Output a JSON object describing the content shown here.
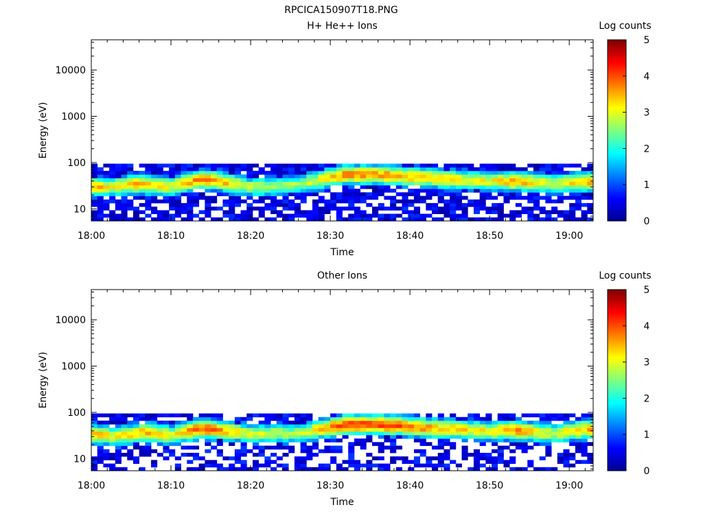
{
  "figure_title": "RPCICA150907T18.PNG",
  "colors": {
    "scale": [
      "#00008f",
      "#0000ff",
      "#007fff",
      "#00ffff",
      "#7fff7f",
      "#ffff00",
      "#ff7f00",
      "#ff0000",
      "#7f0000"
    ],
    "axis": "#000000",
    "background": "#ffffff"
  },
  "chart_data": [
    {
      "type": "heatmap",
      "title": "H+ He++ Ions",
      "xlabel": "Time",
      "ylabel": "Energy (eV)",
      "colorbar_label": "Log counts",
      "x_ticks": [
        "18:00",
        "18:10",
        "18:20",
        "18:30",
        "18:40",
        "18:50",
        "19:00"
      ],
      "x_range_minutes": [
        0,
        63
      ],
      "y_scale": "log",
      "y_range": [
        5.5,
        45000
      ],
      "y_ticks": [
        10,
        100,
        1000,
        10000
      ],
      "y_tick_labels": [
        "10",
        "100",
        "1000",
        "10000"
      ],
      "colorbar_range": [
        0,
        5
      ],
      "colorbar_ticks": [
        "0",
        "1",
        "2",
        "3",
        "4",
        "5"
      ],
      "energy_band": [
        5.5,
        95
      ],
      "peak_energy": [
        {
          "t": 0,
          "e": 30
        },
        {
          "t": 2,
          "e": 30
        },
        {
          "t": 6,
          "e": 35
        },
        {
          "t": 10,
          "e": 30
        },
        {
          "t": 14,
          "e": 45
        },
        {
          "t": 20,
          "e": 30
        },
        {
          "t": 26,
          "e": 33
        },
        {
          "t": 32,
          "e": 55
        },
        {
          "t": 36,
          "e": 55
        },
        {
          "t": 40,
          "e": 50
        },
        {
          "t": 44,
          "e": 45
        },
        {
          "t": 50,
          "e": 40
        },
        {
          "t": 53,
          "e": 40
        },
        {
          "t": 58,
          "e": 35
        },
        {
          "t": 63,
          "e": 40
        }
      ],
      "peak_intensity": [
        {
          "t": 0,
          "v": 3.6
        },
        {
          "t": 3,
          "v": 3.0
        },
        {
          "t": 6,
          "v": 3.5
        },
        {
          "t": 10,
          "v": 3.0
        },
        {
          "t": 14,
          "v": 3.9
        },
        {
          "t": 20,
          "v": 2.8
        },
        {
          "t": 26,
          "v": 2.6
        },
        {
          "t": 32,
          "v": 3.7
        },
        {
          "t": 36,
          "v": 3.6
        },
        {
          "t": 40,
          "v": 3.4
        },
        {
          "t": 44,
          "v": 3.3
        },
        {
          "t": 50,
          "v": 3.0
        },
        {
          "t": 53,
          "v": 3.6
        },
        {
          "t": 58,
          "v": 2.9
        },
        {
          "t": 63,
          "v": 3.5
        }
      ]
    },
    {
      "type": "heatmap",
      "title": "Other Ions",
      "xlabel": "Time",
      "ylabel": "Energy (eV)",
      "colorbar_label": "Log counts",
      "x_ticks": [
        "18:00",
        "18:10",
        "18:20",
        "18:30",
        "18:40",
        "18:50",
        "19:00"
      ],
      "x_range_minutes": [
        0,
        63
      ],
      "y_scale": "log",
      "y_range": [
        5.5,
        45000
      ],
      "y_ticks": [
        10,
        100,
        1000,
        10000
      ],
      "y_tick_labels": [
        "10",
        "100",
        "1000",
        "10000"
      ],
      "colorbar_range": [
        0,
        5
      ],
      "colorbar_ticks": [
        "0",
        "1",
        "2",
        "3",
        "4",
        "5"
      ],
      "energy_band": [
        5.5,
        95
      ],
      "peak_energy": [
        {
          "t": 0,
          "e": 35
        },
        {
          "t": 3,
          "e": 30
        },
        {
          "t": 7,
          "e": 38
        },
        {
          "t": 10,
          "e": 32
        },
        {
          "t": 14,
          "e": 45
        },
        {
          "t": 20,
          "e": 35
        },
        {
          "t": 26,
          "e": 35
        },
        {
          "t": 32,
          "e": 55
        },
        {
          "t": 36,
          "e": 55
        },
        {
          "t": 40,
          "e": 50
        },
        {
          "t": 44,
          "e": 45
        },
        {
          "t": 50,
          "e": 40
        },
        {
          "t": 53,
          "e": 42
        },
        {
          "t": 58,
          "e": 35
        },
        {
          "t": 63,
          "e": 45
        }
      ],
      "peak_intensity": [
        {
          "t": 0,
          "v": 3.6
        },
        {
          "t": 3,
          "v": 3.0
        },
        {
          "t": 7,
          "v": 3.6
        },
        {
          "t": 10,
          "v": 3.1
        },
        {
          "t": 14,
          "v": 4.0
        },
        {
          "t": 20,
          "v": 2.9
        },
        {
          "t": 26,
          "v": 2.7
        },
        {
          "t": 32,
          "v": 4.1
        },
        {
          "t": 36,
          "v": 4.1
        },
        {
          "t": 40,
          "v": 3.8
        },
        {
          "t": 44,
          "v": 3.4
        },
        {
          "t": 50,
          "v": 3.1
        },
        {
          "t": 53,
          "v": 3.7
        },
        {
          "t": 58,
          "v": 2.9
        },
        {
          "t": 63,
          "v": 3.6
        }
      ]
    }
  ]
}
